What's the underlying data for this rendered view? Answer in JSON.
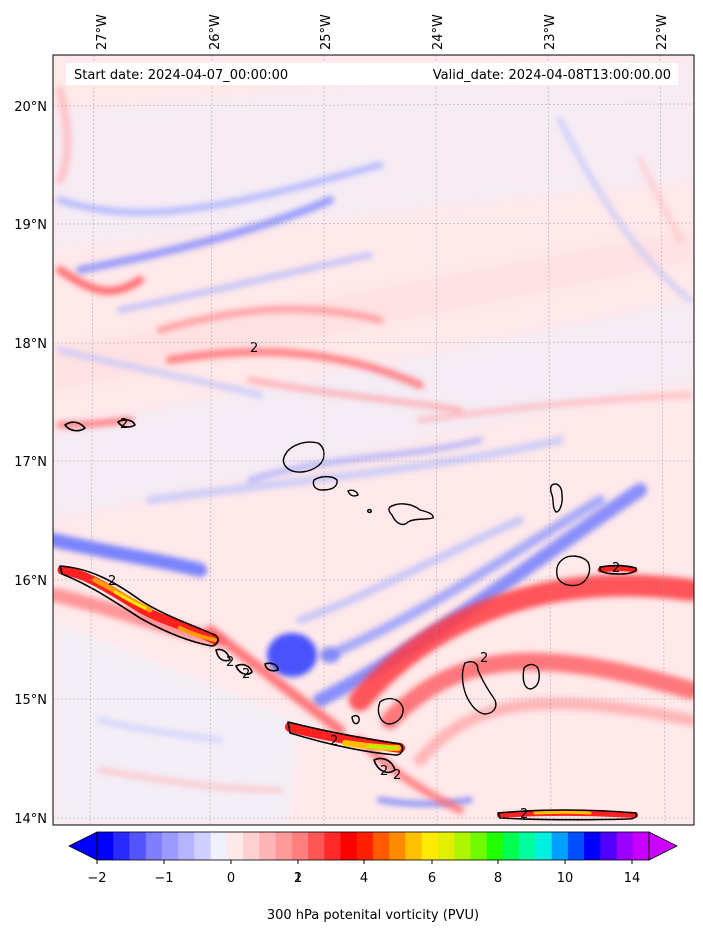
{
  "map": {
    "start_date": "Start date: 2024-04-07_00:00:00",
    "valid_date": "Valid_date: 2024-04-08T13:00:00.00",
    "lon_labels": [
      "27°W",
      "26°W",
      "25°W",
      "24°W",
      "23°W",
      "22°W"
    ],
    "lat_labels": [
      "20°N",
      "19°N",
      "18°N",
      "17°N",
      "16°N",
      "15°N",
      "14°N"
    ],
    "contour_label": "2"
  },
  "colorbar": {
    "title": "300 hPa potenital vorticity (PVU)",
    "tick_labels": [
      "−2",
      "−1",
      "0",
      "1",
      "2",
      "4",
      "6",
      "8",
      "10",
      "14"
    ],
    "colors": [
      "#0000ff",
      "#2a2aff",
      "#5555ff",
      "#7f7fff",
      "#9a9aff",
      "#b5b5ff",
      "#d0d0ff",
      "#f0f0ff",
      "#ffe8e8",
      "#ffd0d0",
      "#ffb5b5",
      "#ff9a9a",
      "#ff7f7f",
      "#ff5555",
      "#ff2a2a",
      "#ff0000",
      "#ff2000",
      "#ff5a00",
      "#ff8c00",
      "#ffc000",
      "#ffea00",
      "#e0f000",
      "#b0f500",
      "#70fa00",
      "#20ff00",
      "#00ff50",
      "#00ffa0",
      "#00f0e0",
      "#00a0ff",
      "#0050ff",
      "#0000ff",
      "#5000ff",
      "#9a00ff",
      "#c800ff"
    ],
    "under_color": "#0000ff",
    "over_color": "#cc00ff"
  }
}
